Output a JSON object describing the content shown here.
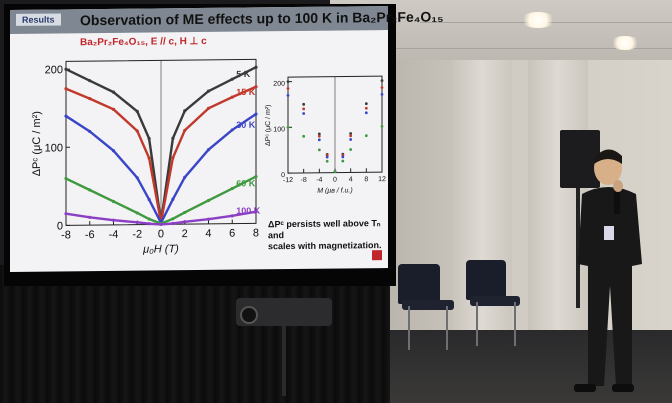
{
  "slide": {
    "section_tag": "Results",
    "title": "Observation of ME effects up to 100 K in Ba₂Pr₂Fe₄O₁₅",
    "left_plot": {
      "subtitle": "Ba₂Pr₂Fe₄O₁₅, E // c, H ⊥ c",
      "y_label": "ΔPᶜ (μC / m²)",
      "x_label": "μ₀H (T)",
      "y_ticks": [
        "0",
        "100",
        "200"
      ],
      "x_ticks": [
        "-8",
        "-6",
        "-4",
        "-2",
        "0",
        "2",
        "4",
        "6",
        "8"
      ],
      "series_labels": [
        "5 K",
        "15 K",
        "30 K",
        "60 K",
        "100 K"
      ]
    },
    "right_plot": {
      "y_label": "ΔPᶜ (μC / m²)",
      "x_label": "M (μʙ / f.u.)",
      "y_ticks": [
        "0",
        "100",
        "200"
      ],
      "x_ticks": [
        "-12",
        "-8",
        "-4",
        "0",
        "4",
        "8",
        "12"
      ]
    },
    "note_line1": "ΔPᶜ persists well above Tₙ and",
    "note_line2": "scales with magnetization."
  },
  "chart_data": [
    {
      "type": "line",
      "title": "Ba₂Pr₂Fe₄O₁₅, E // c, H ⊥ c",
      "xlabel": "μ₀H (T)",
      "ylabel": "ΔPᶜ (μC / m²)",
      "xlim": [
        -8,
        8
      ],
      "ylim": [
        0,
        210
      ],
      "x": [
        -8,
        -6,
        -4,
        -2,
        -1,
        0,
        1,
        2,
        4,
        6,
        8
      ],
      "series": [
        {
          "name": "5 K",
          "color": "#3a3a3a",
          "values": [
            200,
            185,
            170,
            145,
            110,
            3,
            110,
            145,
            170,
            185,
            200
          ]
        },
        {
          "name": "15 K",
          "color": "#c0392b",
          "values": [
            175,
            162,
            148,
            120,
            85,
            3,
            85,
            120,
            148,
            162,
            175
          ]
        },
        {
          "name": "30 K",
          "color": "#3a46c8",
          "values": [
            140,
            120,
            95,
            60,
            32,
            2,
            32,
            60,
            95,
            120,
            140
          ]
        },
        {
          "name": "60 K",
          "color": "#3f9a3f",
          "values": [
            60,
            45,
            30,
            15,
            7,
            1,
            7,
            15,
            30,
            45,
            60
          ]
        },
        {
          "name": "100 K",
          "color": "#8a3fc4",
          "values": [
            15,
            10,
            6,
            3,
            1,
            0,
            1,
            3,
            6,
            10,
            15
          ]
        }
      ]
    },
    {
      "type": "scatter",
      "xlabel": "M (μʙ / f.u.)",
      "ylabel": "ΔPᶜ (μC / m²)",
      "xlim": [
        -12,
        12
      ],
      "ylim": [
        0,
        210
      ],
      "x": [
        -12,
        -8,
        -4,
        -2,
        0,
        2,
        4,
        8,
        12
      ],
      "series": [
        {
          "name": "5 K",
          "color": "#3a3a3a",
          "values": [
            200,
            150,
            85,
            40,
            2,
            40,
            85,
            150,
            200
          ]
        },
        {
          "name": "15 K",
          "color": "#c0392b",
          "values": [
            185,
            140,
            80,
            38,
            2,
            38,
            80,
            140,
            185
          ]
        },
        {
          "name": "30 K",
          "color": "#3a46c8",
          "values": [
            170,
            130,
            72,
            34,
            2,
            34,
            72,
            130,
            170
          ]
        },
        {
          "name": "60 K",
          "color": "#3f9a3f",
          "values": [
            100,
            80,
            50,
            25,
            2,
            25,
            50,
            80,
            100
          ]
        }
      ]
    }
  ]
}
